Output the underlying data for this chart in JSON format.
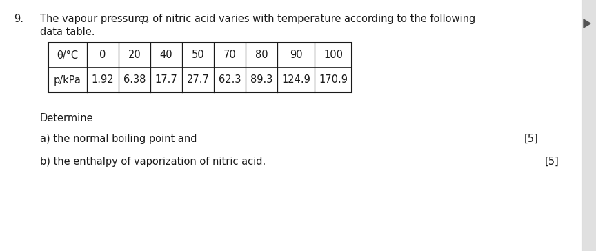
{
  "question_number": "9.",
  "table_header": [
    "θ/°C",
    "0",
    "20",
    "40",
    "50",
    "70",
    "80",
    "90",
    "100"
  ],
  "table_row2_label": "p/kPa",
  "table_row2_values": [
    "1.92",
    "6.38",
    "17.7",
    "27.7",
    "62.3",
    "89.3",
    "124.9",
    "170.9"
  ],
  "determine_text": "Determine",
  "part_a_text": "a) the normal boiling point and",
  "part_a_marks": "[5]",
  "part_b_text": "b) the enthalpy of vaporization of nitric acid.",
  "part_b_marks": "[5]",
  "bg_color": "#ffffff",
  "text_color": "#1a1a1a",
  "table_border_color": "#1a1a1a",
  "font_size_main": 10.5,
  "right_panel_color": "#e8e8e8",
  "arrow_color": "#666666"
}
